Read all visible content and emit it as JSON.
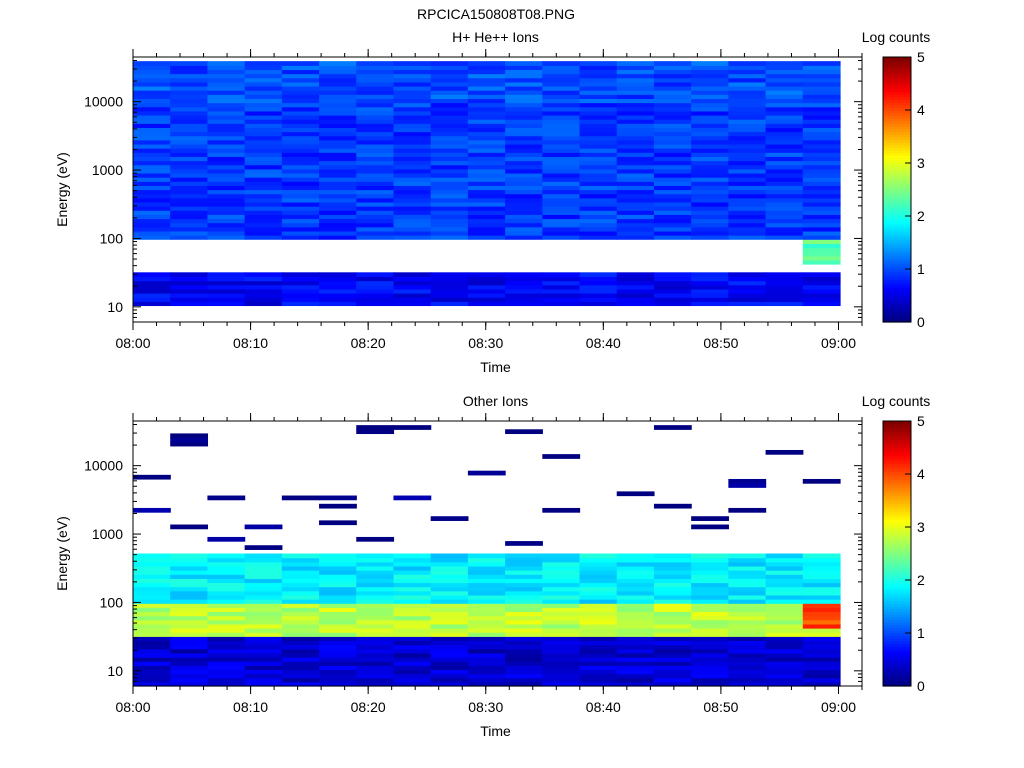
{
  "figure_title": "RPCICA150808T08.PNG",
  "colorscale": [
    "#00007f",
    "#0000ff",
    "#007fff",
    "#00ffff",
    "#7fff7f",
    "#ffff00",
    "#ff7f00",
    "#ff0000",
    "#7f0000"
  ],
  "chart_data": [
    {
      "type": "heatmap",
      "title": "H+ He++ Ions",
      "xlabel": "Time",
      "ylabel": "Energy (eV)",
      "y_scale": "log",
      "x_range": [
        "08:00",
        "09:02"
      ],
      "y_range": [
        6,
        45000
      ],
      "x_ticks": [
        "08:00",
        "08:10",
        "08:20",
        "08:30",
        "08:40",
        "08:50",
        "09:00"
      ],
      "y_ticks": [
        "10",
        "100",
        "1000",
        "10000"
      ],
      "colorbar": {
        "label": "Log counts",
        "range": [
          0,
          5
        ],
        "ticks": [
          "0",
          "1",
          "2",
          "3",
          "4",
          "5"
        ]
      },
      "time_bins": 19,
      "summary_log_counts": [
        {
          "energy_eV": "10000-40000",
          "typical": 1.0
        },
        {
          "energy_eV": "100-10000",
          "typical": 0.9
        },
        {
          "energy_eV": "10-30",
          "typical": 0.6
        },
        {
          "energy_eV": "45-100",
          "time": "08:56-09:02",
          "typical": 2.3
        }
      ]
    },
    {
      "type": "heatmap",
      "title": "Other Ions",
      "xlabel": "Time",
      "ylabel": "Energy (eV)",
      "y_scale": "log",
      "x_range": [
        "08:00",
        "09:02"
      ],
      "y_range": [
        6,
        45000
      ],
      "x_ticks": [
        "08:00",
        "08:10",
        "08:20",
        "08:30",
        "08:40",
        "08:50",
        "09:00"
      ],
      "y_ticks": [
        "10",
        "100",
        "1000",
        "10000"
      ],
      "colorbar": {
        "label": "Log counts",
        "range": [
          0,
          5
        ],
        "ticks": [
          "0",
          "1",
          "2",
          "3",
          "4",
          "5"
        ]
      },
      "time_bins": 19,
      "summary_log_counts": [
        {
          "energy_eV": "500-40000",
          "typical": 0.0,
          "note": "sparse single counts"
        },
        {
          "energy_eV": "100-500",
          "typical": 1.8
        },
        {
          "energy_eV": "30-100",
          "typical": 2.8
        },
        {
          "energy_eV": "40-100",
          "time": "08:56-09:02",
          "typical": 4.0
        },
        {
          "energy_eV": "6-30",
          "typical": 0.4
        }
      ]
    }
  ]
}
